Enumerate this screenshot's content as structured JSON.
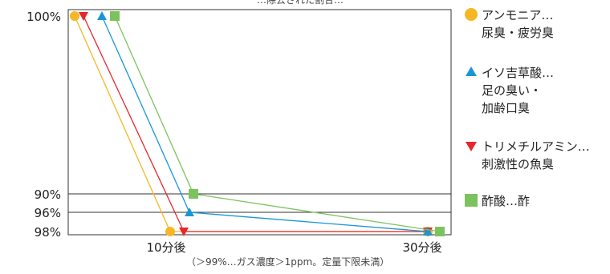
{
  "chart_data": {
    "type": "line",
    "title": "",
    "xlabel": "",
    "ylabel": "",
    "top_caption": "…除去された割合…",
    "note": "（＞99%…ガス濃度＞1ppm。定量下限未満）",
    "x_categories": [
      "",
      "10分後",
      "30分後"
    ],
    "y_ticks": [
      "100%",
      "90%",
      "96%",
      "98%"
    ],
    "series": [
      {
        "name": "アンモニア…\n尿臭・疲労臭",
        "color": "#f6b724",
        "marker": "circle",
        "values": [
          "100%",
          "98%",
          "98%"
        ]
      },
      {
        "name": "トリメチルアミン…\n刺激性の魚臭",
        "color": "#e8262e",
        "marker": "triangle-down",
        "values": [
          "100%",
          "98%",
          "98%"
        ]
      },
      {
        "name": "イソ吉草酸…\n足の臭い・\n加齢口臭",
        "color": "#1a96d6",
        "marker": "triangle-up",
        "values": [
          "100%",
          "96%",
          "98%"
        ]
      },
      {
        "name": "酢酸…酢",
        "color": "#7cc35f",
        "marker": "square",
        "values": [
          "100%",
          "90%",
          "98%"
        ]
      }
    ],
    "legend_order": [
      0,
      2,
      1,
      3
    ],
    "legend_position": "right",
    "grid": false
  }
}
